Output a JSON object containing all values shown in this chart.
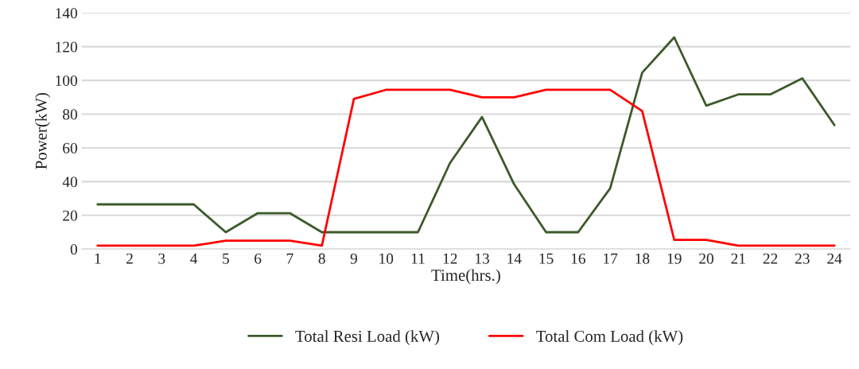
{
  "chart_data": {
    "type": "line",
    "xlabel": "Time(hrs.)",
    "ylabel": "Power(kW)",
    "categories": [
      "1",
      "2",
      "3",
      "4",
      "5",
      "6",
      "7",
      "8",
      "9",
      "10",
      "11",
      "12",
      "13",
      "14",
      "15",
      "16",
      "17",
      "18",
      "19",
      "20",
      "21",
      "22",
      "23",
      "24"
    ],
    "series": [
      {
        "name": "Total Resi Load (kW)",
        "color": "#3b5a2a",
        "values": [
          26.5,
          26.5,
          26.5,
          26.5,
          10,
          21.3,
          21.3,
          10,
          10,
          10,
          10,
          51,
          78.3,
          38.5,
          10,
          10,
          36,
          104.6,
          125.5,
          85,
          91.7,
          91.7,
          101.2,
          73.5
        ]
      },
      {
        "name": "Total Com Load (kW)",
        "color": "#ff0000",
        "values": [
          2,
          2,
          2,
          2,
          5,
          5,
          5,
          2,
          89,
          94.4,
          94.4,
          94.4,
          90,
          90,
          94.4,
          94.4,
          94.4,
          81.8,
          5.5,
          5.5,
          2,
          2,
          2,
          2
        ]
      }
    ],
    "ylim": [
      0,
      140
    ],
    "yticks": [
      0,
      20,
      40,
      60,
      80,
      100,
      120,
      140
    ],
    "grid": "y",
    "legend": "bottom",
    "marker": "none",
    "line_style": "solid"
  }
}
